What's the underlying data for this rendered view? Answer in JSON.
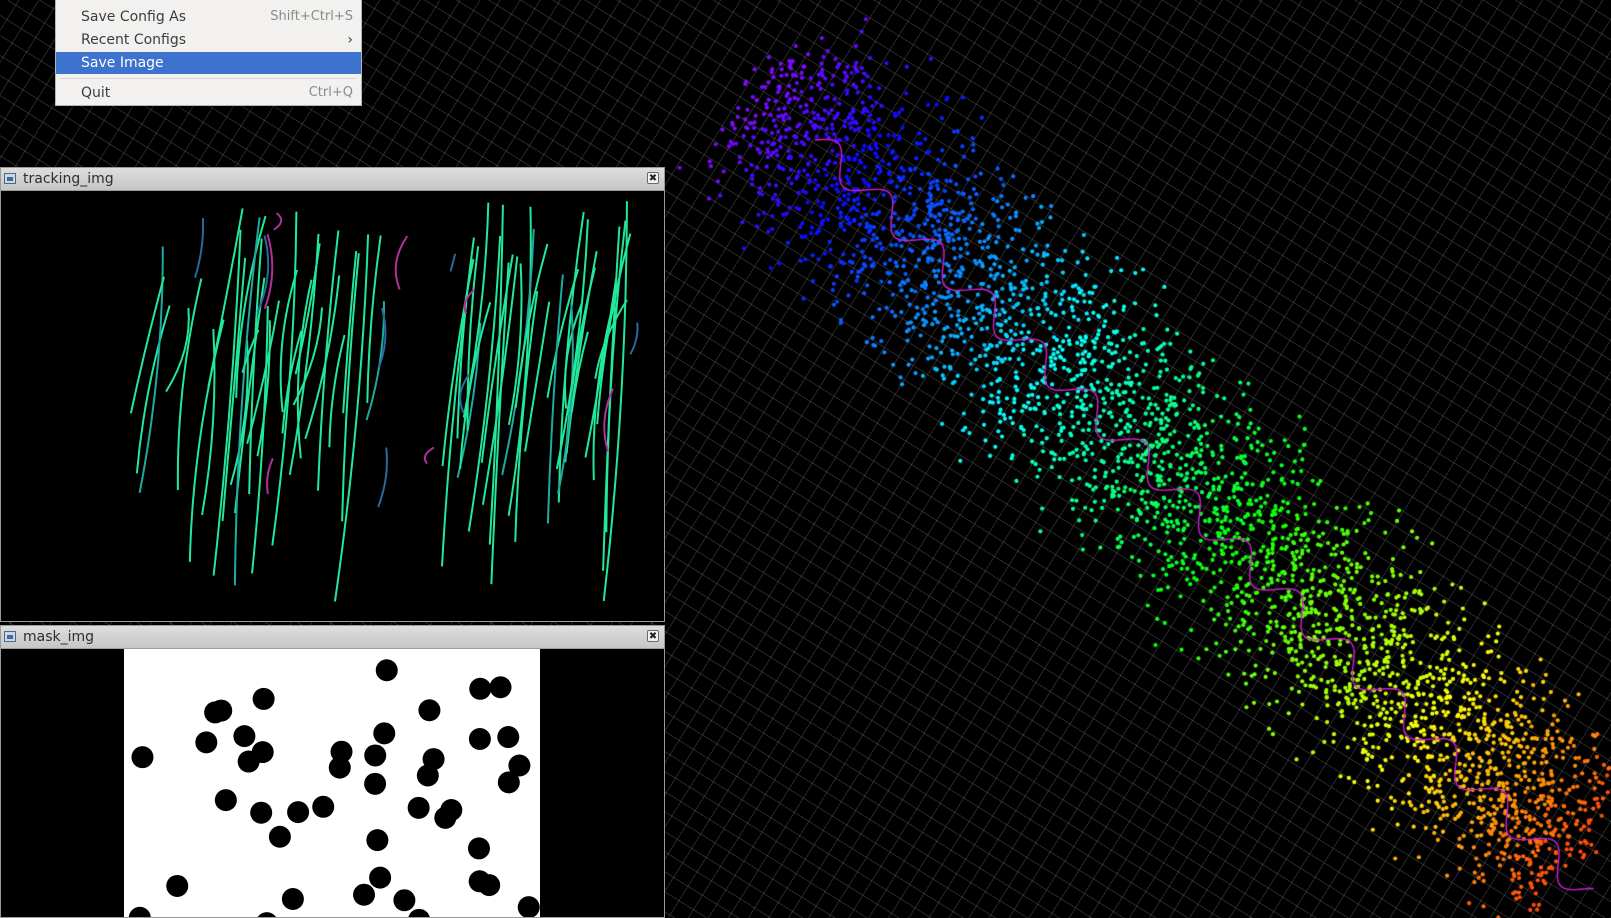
{
  "menu": {
    "items": [
      {
        "label": "Save Config As",
        "shortcut": "Shift+Ctrl+S"
      },
      {
        "label": "Recent Configs",
        "submenu": true
      },
      {
        "label": "Save Image",
        "highlighted": true
      },
      {
        "label": "Quit",
        "shortcut": "Ctrl+Q"
      }
    ],
    "submenu_arrow": "›",
    "highlight_color": "#3d72cf"
  },
  "windows": {
    "tracking": {
      "title": "tracking_img",
      "close_glyph": "✖"
    },
    "mask": {
      "title": "mask_img",
      "close_glyph": "✖"
    }
  },
  "icons": [
    "image-window-icon",
    "close-icon",
    "chevron-right-icon"
  ],
  "colors": {
    "grid": "#8c8c8c",
    "track_green": "#22e89a",
    "track_magenta": "#b0309a",
    "trajectory": "#d020d0"
  }
}
